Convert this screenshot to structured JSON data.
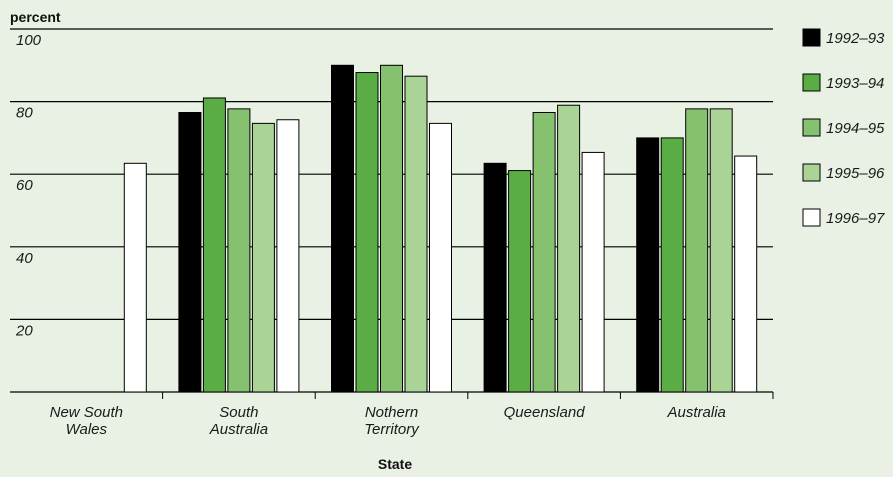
{
  "chart_data": {
    "type": "bar",
    "y_unit_label": "percent",
    "xlabel": "State",
    "ylim": [
      0,
      100
    ],
    "yticks": [
      20,
      40,
      60,
      80,
      100
    ],
    "grid": true,
    "legend_position": "right",
    "categories": [
      [
        "New South",
        "Wales"
      ],
      [
        "South",
        "Australia"
      ],
      [
        "Nothern",
        "Territory"
      ],
      [
        "Queensland"
      ],
      [
        "Australia"
      ]
    ],
    "series": [
      {
        "name": "1992–93",
        "color": "#000000",
        "values": [
          null,
          77,
          90,
          63,
          70
        ]
      },
      {
        "name": "1993–94",
        "color": "#5aad44",
        "values": [
          null,
          81,
          88,
          61,
          70
        ]
      },
      {
        "name": "1994–95",
        "color": "#86c16f",
        "values": [
          null,
          78,
          90,
          77,
          78
        ]
      },
      {
        "name": "1995–96",
        "color": "#a9d495",
        "values": [
          null,
          74,
          87,
          79,
          78
        ]
      },
      {
        "name": "1996–97",
        "color": "#ffffff",
        "values": [
          63,
          75,
          74,
          66,
          65
        ]
      }
    ]
  }
}
